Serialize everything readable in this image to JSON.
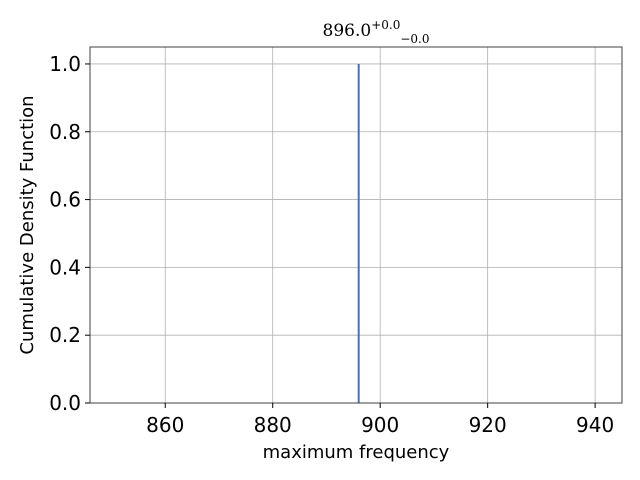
{
  "chart_data": {
    "type": "line",
    "title": "896.0",
    "title_sup": "+0.0",
    "title_sub": "−0.0",
    "xlabel": "maximum frequency",
    "ylabel": "Cumulative Density Function",
    "xlim": [
      846,
      945
    ],
    "ylim": [
      0,
      1.05
    ],
    "xticks": [
      860,
      880,
      900,
      920,
      940
    ],
    "xtick_labels": [
      "860",
      "880",
      "900",
      "920",
      "940"
    ],
    "yticks": [
      0.0,
      0.2,
      0.4,
      0.6,
      0.8,
      1.0
    ],
    "ytick_labels": [
      "0.0",
      "0.2",
      "0.4",
      "0.6",
      "0.8",
      "1.0"
    ],
    "grid": true,
    "series": [
      {
        "x": [
          896.0,
          896.0
        ],
        "y": [
          0.0,
          1.0
        ],
        "color": "#4c72b0"
      }
    ]
  }
}
